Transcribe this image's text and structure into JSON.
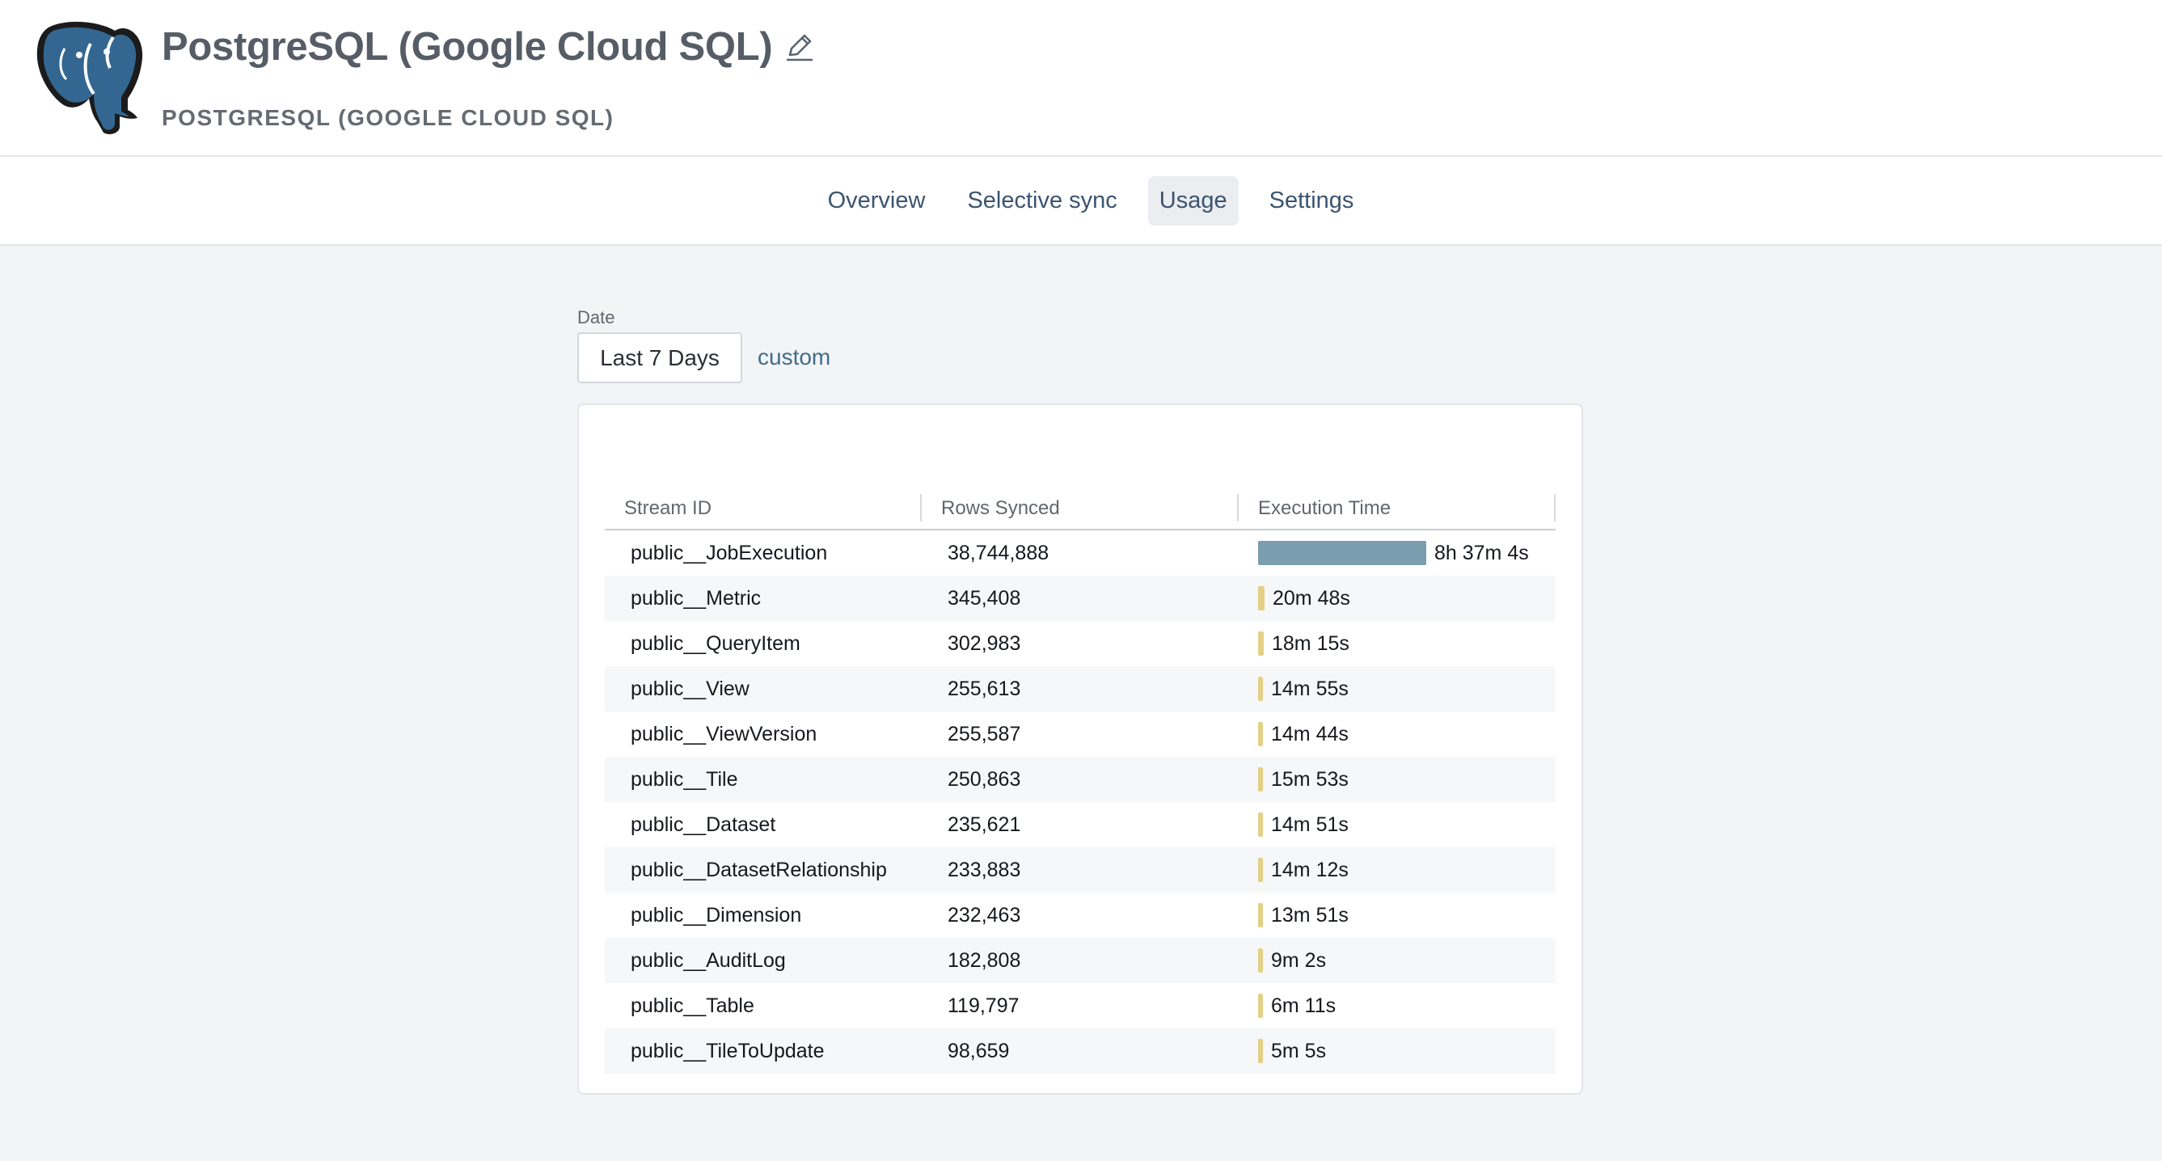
{
  "header": {
    "title": "PostgreSQL (Google Cloud SQL)",
    "subtitle": "POSTGRESQL (GOOGLE CLOUD SQL)",
    "logo_icon": "postgresql-elephant-logo",
    "edit_icon": "pencil-icon"
  },
  "tabs": [
    {
      "label": "Overview",
      "active": false
    },
    {
      "label": "Selective sync",
      "active": false
    },
    {
      "label": "Usage",
      "active": true
    },
    {
      "label": "Settings",
      "active": false
    }
  ],
  "filters": {
    "date_label": "Date",
    "date_value": "Last 7 Days",
    "custom_label": "custom"
  },
  "table": {
    "columns": [
      "Stream ID",
      "Rows Synced",
      "Execution Time"
    ],
    "bar_colors": {
      "max": "#7a9eae",
      "other": "#e4cf86"
    },
    "rows": [
      {
        "stream": "public__JobExecution",
        "rows": "38,744,888",
        "time": "8h 37m 4s",
        "fraction": 1.0
      },
      {
        "stream": "public__Metric",
        "rows": "345,408",
        "time": "20m 48s",
        "fraction": 0.0402
      },
      {
        "stream": "public__QueryItem",
        "rows": "302,983",
        "time": "18m 15s",
        "fraction": 0.0353
      },
      {
        "stream": "public__View",
        "rows": "255,613",
        "time": "14m 55s",
        "fraction": 0.0288
      },
      {
        "stream": "public__ViewVersion",
        "rows": "255,587",
        "time": "14m 44s",
        "fraction": 0.0285
      },
      {
        "stream": "public__Tile",
        "rows": "250,863",
        "time": "15m 53s",
        "fraction": 0.0307
      },
      {
        "stream": "public__Dataset",
        "rows": "235,621",
        "time": "14m 51s",
        "fraction": 0.0287
      },
      {
        "stream": "public__DatasetRelationship",
        "rows": "233,883",
        "time": "14m 12s",
        "fraction": 0.0275
      },
      {
        "stream": "public__Dimension",
        "rows": "232,463",
        "time": "13m 51s",
        "fraction": 0.0268
      },
      {
        "stream": "public__AuditLog",
        "rows": "182,808",
        "time": "9m 2s",
        "fraction": 0.0175
      },
      {
        "stream": "public__Table",
        "rows": "119,797",
        "time": "6m 11s",
        "fraction": 0.012
      },
      {
        "stream": "public__TileToUpdate",
        "rows": "98,659",
        "time": "5m 5s",
        "fraction": 0.0098
      }
    ]
  }
}
